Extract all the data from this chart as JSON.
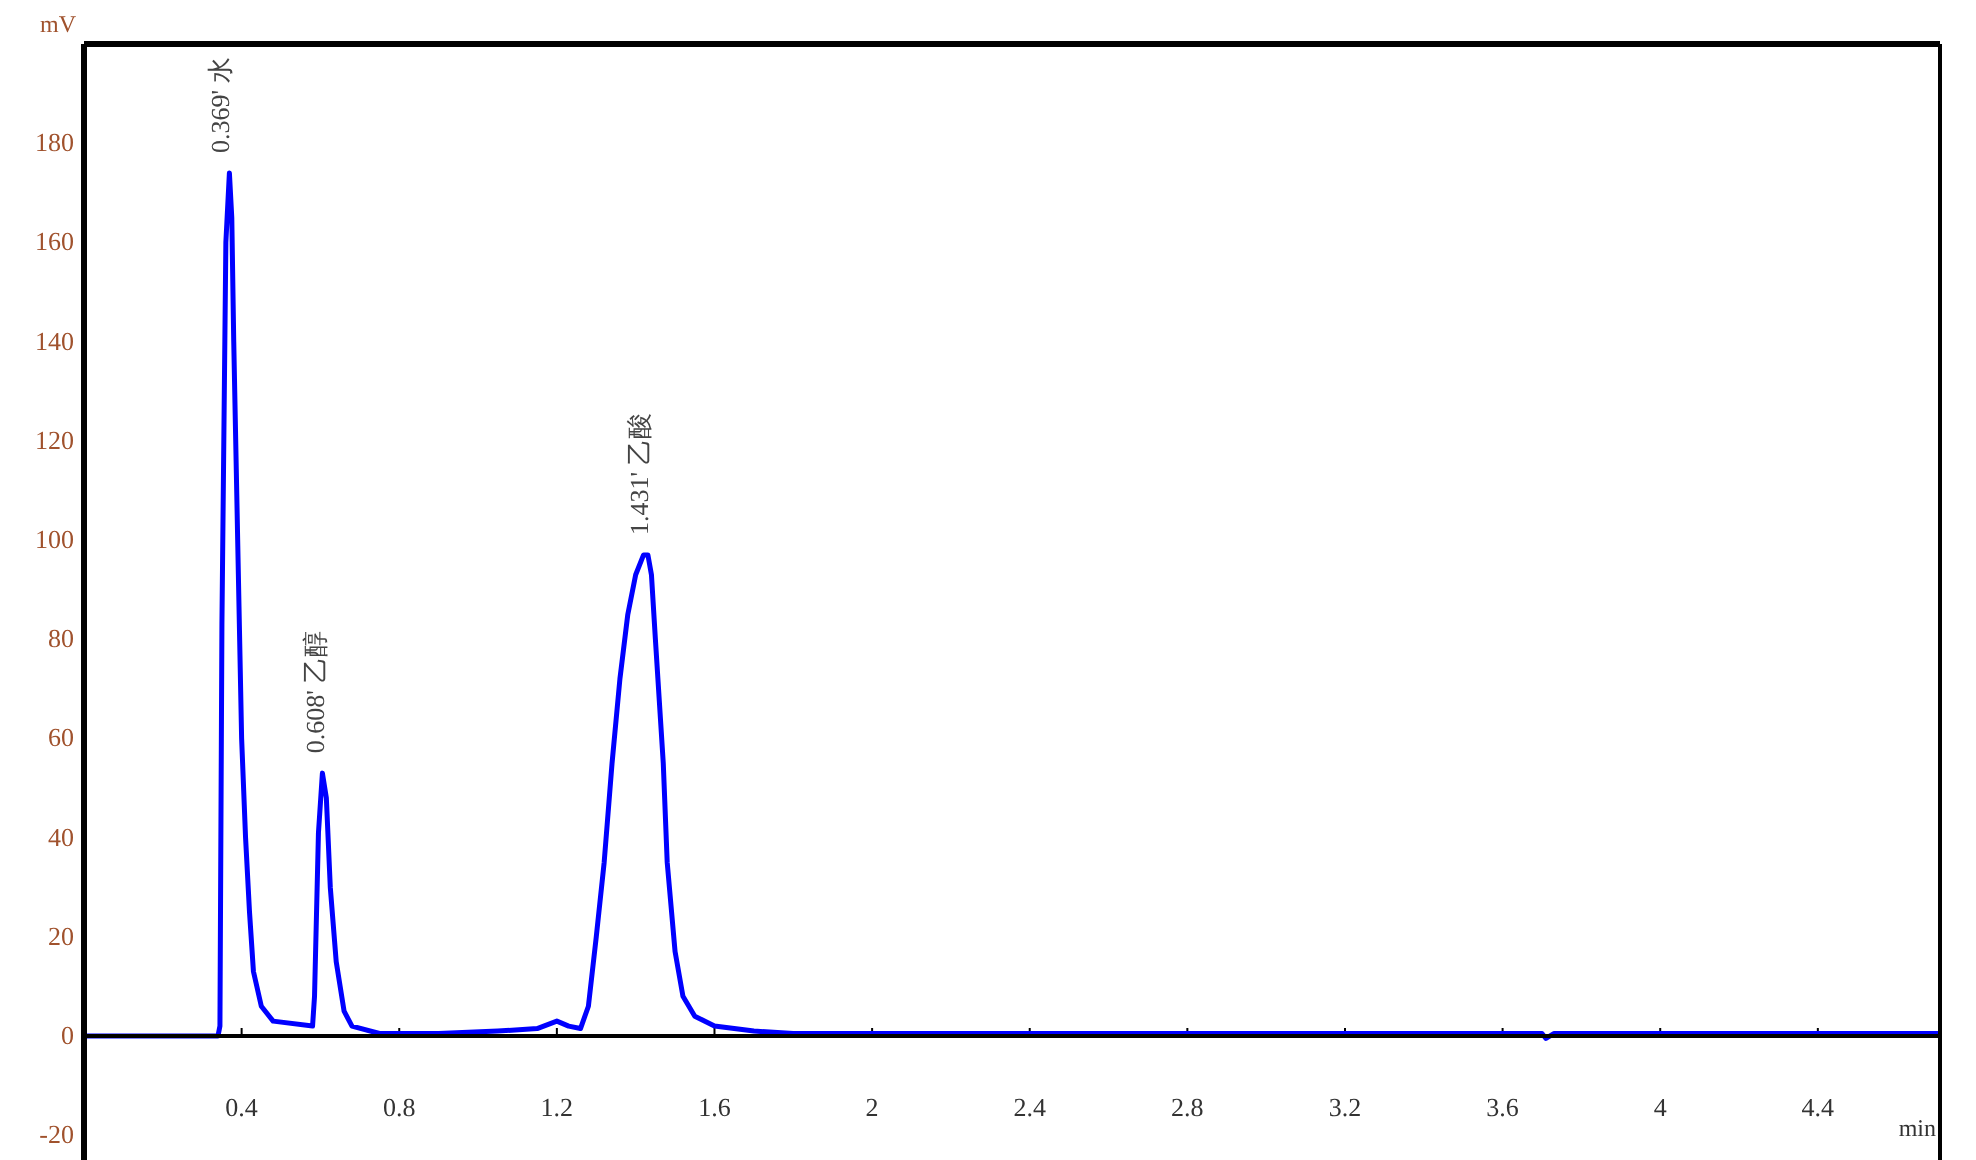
{
  "chart_data": {
    "type": "line",
    "xlabel": "min",
    "ylabel": "mV",
    "xlim": [
      0,
      4.71
    ],
    "ylim": [
      -25,
      200
    ],
    "xticks": [
      0.4,
      0.8,
      1.2,
      1.6,
      2,
      2.4,
      2.8,
      3.2,
      3.6,
      4,
      4.4
    ],
    "yticks": [
      -20,
      0,
      20,
      40,
      60,
      80,
      100,
      120,
      140,
      160,
      180
    ],
    "grid": false,
    "marker": "none",
    "line_style": "solid",
    "series": [
      {
        "color": "#0000ff",
        "x": [
          0,
          0.34,
          0.345,
          0.35,
          0.36,
          0.369,
          0.375,
          0.38,
          0.39,
          0.4,
          0.41,
          0.42,
          0.43,
          0.45,
          0.48,
          0.58,
          0.585,
          0.595,
          0.605,
          0.615,
          0.625,
          0.64,
          0.66,
          0.68,
          0.75,
          0.9,
          1.05,
          1.15,
          1.2,
          1.23,
          1.26,
          1.28,
          1.3,
          1.32,
          1.34,
          1.36,
          1.38,
          1.4,
          1.42,
          1.431,
          1.44,
          1.45,
          1.47,
          1.48,
          1.5,
          1.52,
          1.55,
          1.6,
          1.7,
          1.8,
          3.7,
          3.71,
          3.73,
          4.71
        ],
        "values": [
          0,
          0,
          2,
          83,
          160,
          174,
          165,
          140,
          100,
          60,
          40,
          25,
          13,
          6,
          3,
          2,
          8,
          41,
          53,
          48,
          30,
          15,
          5,
          2,
          0.5,
          0.5,
          1,
          1.5,
          3,
          2,
          1.5,
          6,
          20,
          35,
          55,
          72,
          85,
          93,
          97,
          97,
          93,
          80,
          55,
          35,
          17,
          8,
          4,
          2,
          1,
          0.5,
          0.5,
          -0.5,
          0.5,
          0.5
        ]
      }
    ],
    "annotations": [
      {
        "text": "0.369' 水",
        "x": 0.369,
        "y": 174
      },
      {
        "text": "0.608' 乙醇",
        "x": 0.608,
        "y": 53
      },
      {
        "text": "1.431' 乙酸",
        "x": 1.431,
        "y": 97
      }
    ]
  }
}
